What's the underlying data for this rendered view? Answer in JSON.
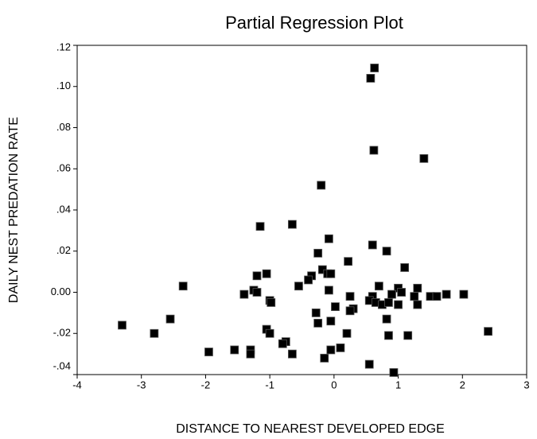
{
  "chart_data": {
    "type": "scatter",
    "title": "Partial Regression Plot",
    "x_label": "DISTANCE TO NEAREST DEVELOPED EDGE",
    "y_label": "DAILY NEST PREDATION RATE",
    "color": "#000000",
    "xlim": [
      -4,
      3
    ],
    "xticks": [
      -4,
      -3,
      -2,
      -1,
      0,
      1,
      2,
      3
    ],
    "ylim": [
      -0.04,
      0.12
    ],
    "yticks": [
      {
        "value": -0.04,
        "label": "-.04"
      },
      {
        "value": -0.02,
        "label": "-.02"
      },
      {
        "value": 0,
        "label": "0.00"
      },
      {
        "value": 0.02,
        "label": ".02"
      },
      {
        "value": 0.04,
        "label": ".04"
      },
      {
        "value": 0.06,
        "label": ".06"
      },
      {
        "value": 0.08,
        "label": ".08"
      },
      {
        "value": 0.1,
        "label": ".10"
      },
      {
        "value": 0.12,
        "label": ".12"
      }
    ],
    "x": [
      0.63,
      0.57,
      0.62,
      1.4,
      -0.2,
      -0.65,
      -1.15,
      -0.08,
      0.6,
      0.82,
      -0.25,
      0.22,
      1.1,
      -0.18,
      -0.1,
      -0.05,
      -1.05,
      -1.2,
      -0.35,
      -0.4,
      -0.55,
      -2.35,
      0.7,
      1.0,
      1.3,
      -0.08,
      -1.25,
      -1.2,
      -1.4,
      0.25,
      0.6,
      0.9,
      1.05,
      1.25,
      1.5,
      1.6,
      1.75,
      2.02,
      0.55,
      0.65,
      0.75,
      0.85,
      1.0,
      1.3,
      -1.0,
      -0.98,
      0.02,
      -0.28,
      0.3,
      0.25,
      -2.55,
      0.82,
      -0.05,
      -0.25,
      -3.3,
      -1.05,
      -2.8,
      -1.0,
      0.2,
      0.85,
      1.15,
      2.4,
      -0.75,
      -0.8,
      -0.05,
      0.1,
      -1.3,
      -1.55,
      -1.95,
      -1.3,
      -0.65,
      -0.15,
      0.55,
      0.93
    ],
    "values": [
      0.109,
      0.104,
      0.069,
      0.065,
      0.052,
      0.033,
      0.032,
      0.026,
      0.023,
      0.02,
      0.019,
      0.015,
      0.012,
      0.011,
      0.009,
      0.009,
      0.009,
      0.008,
      0.008,
      0.006,
      0.003,
      0.003,
      0.003,
      0.002,
      0.002,
      0.001,
      0.001,
      0.0,
      -0.001,
      -0.002,
      -0.002,
      -0.001,
      0.0,
      -0.002,
      -0.002,
      -0.002,
      -0.001,
      -0.001,
      -0.004,
      -0.005,
      -0.006,
      -0.005,
      -0.006,
      -0.006,
      -0.004,
      -0.005,
      -0.007,
      -0.01,
      -0.008,
      -0.009,
      -0.013,
      -0.013,
      -0.014,
      -0.015,
      -0.016,
      -0.018,
      -0.02,
      -0.02,
      -0.02,
      -0.021,
      -0.021,
      -0.019,
      -0.024,
      -0.025,
      -0.028,
      -0.027,
      -0.028,
      -0.028,
      -0.029,
      -0.03,
      -0.03,
      -0.032,
      -0.035,
      -0.039
    ]
  }
}
